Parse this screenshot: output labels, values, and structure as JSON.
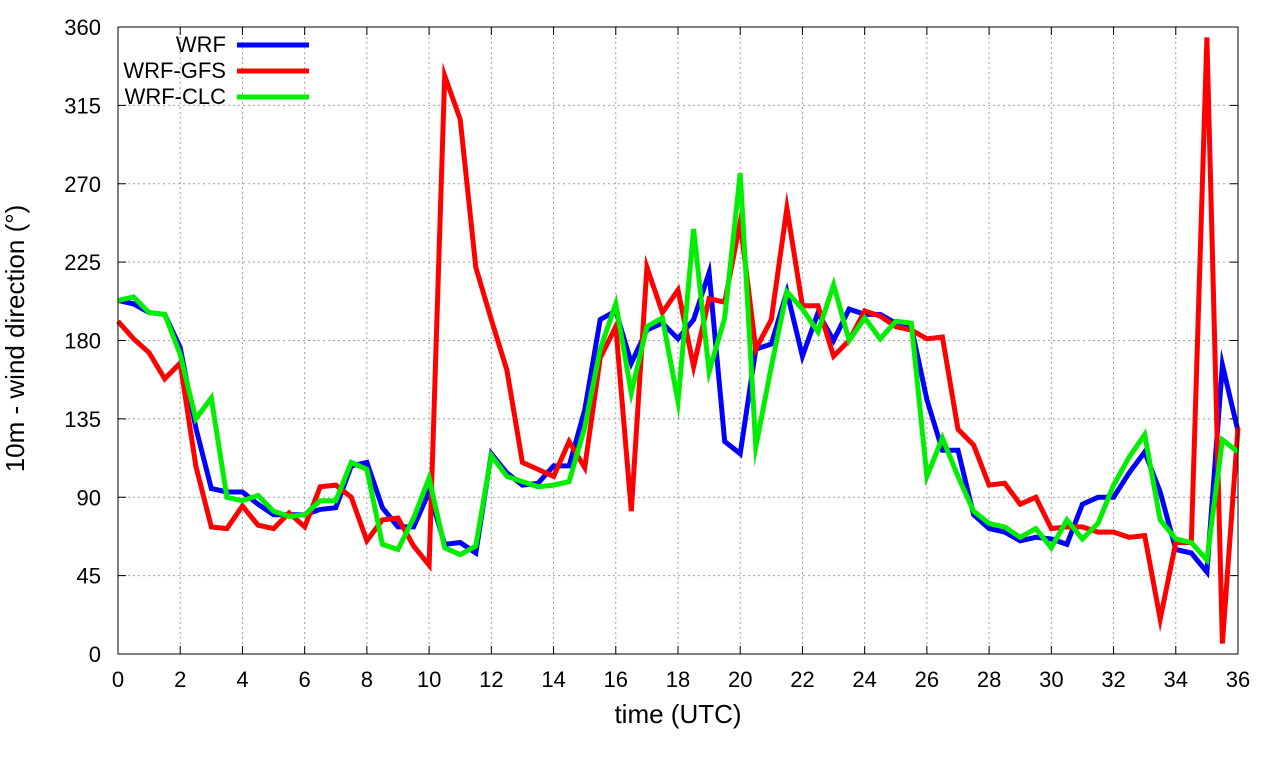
{
  "chart_data": {
    "type": "line",
    "title": "",
    "xlabel": "time (UTC)",
    "ylabel": "10m - wind direction (°)",
    "xlim": [
      0,
      36
    ],
    "ylim": [
      0,
      360
    ],
    "xticks": [
      0,
      2,
      4,
      6,
      8,
      10,
      12,
      14,
      16,
      18,
      20,
      22,
      24,
      26,
      28,
      30,
      32,
      34,
      36
    ],
    "yticks": [
      0,
      45,
      90,
      135,
      180,
      225,
      270,
      315,
      360
    ],
    "grid": true,
    "legend_position": "top-left",
    "series": [
      {
        "name": "WRF",
        "color": "#0000ff",
        "points": [
          [
            0,
            203
          ],
          [
            0.5,
            201
          ],
          [
            1,
            196
          ],
          [
            1.5,
            195
          ],
          [
            2,
            176
          ],
          [
            2.5,
            130
          ],
          [
            3,
            95
          ],
          [
            3.5,
            93
          ],
          [
            4,
            93
          ],
          [
            4.5,
            86
          ],
          [
            5,
            80
          ],
          [
            5.5,
            80
          ],
          [
            6,
            80
          ],
          [
            6.5,
            83
          ],
          [
            7,
            84
          ],
          [
            7.5,
            108
          ],
          [
            8,
            110
          ],
          [
            8.5,
            84
          ],
          [
            9,
            73
          ],
          [
            9.5,
            73
          ],
          [
            10,
            93
          ],
          [
            10.5,
            63
          ],
          [
            11,
            64
          ],
          [
            11.5,
            58
          ],
          [
            12,
            115
          ],
          [
            12.5,
            104
          ],
          [
            13,
            97
          ],
          [
            13.5,
            98
          ],
          [
            14,
            108
          ],
          [
            14.5,
            108
          ],
          [
            15,
            140
          ],
          [
            15.5,
            192
          ],
          [
            16,
            197
          ],
          [
            16.5,
            167
          ],
          [
            17,
            186
          ],
          [
            17.5,
            190
          ],
          [
            18,
            181
          ],
          [
            18.5,
            192
          ],
          [
            19,
            219
          ],
          [
            19.5,
            122
          ],
          [
            20,
            115
          ],
          [
            20.5,
            175
          ],
          [
            21,
            178
          ],
          [
            21.5,
            208
          ],
          [
            22,
            171
          ],
          [
            22.5,
            196
          ],
          [
            23,
            180
          ],
          [
            23.5,
            198
          ],
          [
            24,
            195
          ],
          [
            24.5,
            195
          ],
          [
            25,
            190
          ],
          [
            25.5,
            188
          ],
          [
            26,
            146
          ],
          [
            26.5,
            117
          ],
          [
            27,
            117
          ],
          [
            27.5,
            80
          ],
          [
            28,
            72
          ],
          [
            28.5,
            70
          ],
          [
            29,
            65
          ],
          [
            29.5,
            67
          ],
          [
            30,
            66
          ],
          [
            30.5,
            63
          ],
          [
            31,
            86
          ],
          [
            31.5,
            90
          ],
          [
            32,
            90
          ],
          [
            32.5,
            104
          ],
          [
            33,
            116
          ],
          [
            33.5,
            93
          ],
          [
            34,
            60
          ],
          [
            34.5,
            58
          ],
          [
            35,
            47
          ],
          [
            35.5,
            166
          ],
          [
            36,
            128
          ]
        ]
      },
      {
        "name": "WRF-GFS",
        "color": "#ff0000",
        "points": [
          [
            0,
            191
          ],
          [
            0.5,
            181
          ],
          [
            1,
            173
          ],
          [
            1.5,
            158
          ],
          [
            2,
            167
          ],
          [
            2.5,
            108
          ],
          [
            3,
            73
          ],
          [
            3.5,
            72
          ],
          [
            4,
            85
          ],
          [
            4.5,
            74
          ],
          [
            5,
            72
          ],
          [
            5.5,
            81
          ],
          [
            6,
            73
          ],
          [
            6.5,
            96
          ],
          [
            7,
            97
          ],
          [
            7.5,
            90
          ],
          [
            8,
            65
          ],
          [
            8.5,
            77
          ],
          [
            9,
            78
          ],
          [
            9.5,
            62
          ],
          [
            10,
            51
          ],
          [
            10.5,
            332
          ],
          [
            11,
            307
          ],
          [
            11.5,
            222
          ],
          [
            12,
            192
          ],
          [
            12.5,
            163
          ],
          [
            13,
            110
          ],
          [
            13.5,
            106
          ],
          [
            14,
            102
          ],
          [
            14.5,
            122
          ],
          [
            15,
            107
          ],
          [
            15.5,
            170
          ],
          [
            16,
            188
          ],
          [
            16.5,
            82
          ],
          [
            17,
            222
          ],
          [
            17.5,
            196
          ],
          [
            18,
            209
          ],
          [
            18.5,
            165
          ],
          [
            19,
            204
          ],
          [
            19.5,
            202
          ],
          [
            20,
            248
          ],
          [
            20.5,
            175
          ],
          [
            21,
            192
          ],
          [
            21.5,
            256
          ],
          [
            22,
            200
          ],
          [
            22.5,
            200
          ],
          [
            23,
            171
          ],
          [
            23.5,
            180
          ],
          [
            24,
            197
          ],
          [
            24.5,
            194
          ],
          [
            25,
            188
          ],
          [
            25.5,
            186
          ],
          [
            26,
            181
          ],
          [
            26.5,
            182
          ],
          [
            27,
            129
          ],
          [
            27.5,
            120
          ],
          [
            28,
            97
          ],
          [
            28.5,
            98
          ],
          [
            29,
            86
          ],
          [
            29.5,
            90
          ],
          [
            30,
            72
          ],
          [
            30.5,
            73
          ],
          [
            31,
            73
          ],
          [
            31.5,
            70
          ],
          [
            32,
            70
          ],
          [
            32.5,
            67
          ],
          [
            33,
            68
          ],
          [
            33.5,
            20
          ],
          [
            34,
            64
          ],
          [
            34.5,
            64
          ],
          [
            35,
            354
          ],
          [
            35.5,
            6
          ],
          [
            36,
            130
          ]
        ]
      },
      {
        "name": "WRF-CLC",
        "color": "#00ee00",
        "points": [
          [
            0,
            203
          ],
          [
            0.5,
            205
          ],
          [
            1,
            196
          ],
          [
            1.5,
            195
          ],
          [
            2,
            172
          ],
          [
            2.5,
            135
          ],
          [
            3,
            147
          ],
          [
            3.5,
            90
          ],
          [
            4,
            88
          ],
          [
            4.5,
            91
          ],
          [
            5,
            82
          ],
          [
            5.5,
            79
          ],
          [
            6,
            80
          ],
          [
            6.5,
            88
          ],
          [
            7,
            88
          ],
          [
            7.5,
            110
          ],
          [
            8,
            106
          ],
          [
            8.5,
            63
          ],
          [
            9,
            60
          ],
          [
            9.5,
            78
          ],
          [
            10,
            101
          ],
          [
            10.5,
            61
          ],
          [
            11,
            57
          ],
          [
            11.5,
            62
          ],
          [
            12,
            114
          ],
          [
            12.5,
            102
          ],
          [
            13,
            99
          ],
          [
            13.5,
            96
          ],
          [
            14,
            97
          ],
          [
            14.5,
            99
          ],
          [
            15,
            130
          ],
          [
            15.5,
            175
          ],
          [
            16,
            201
          ],
          [
            16.5,
            150
          ],
          [
            17,
            188
          ],
          [
            17.5,
            193
          ],
          [
            18,
            145
          ],
          [
            18.5,
            244
          ],
          [
            19,
            162
          ],
          [
            19.5,
            193
          ],
          [
            20,
            276
          ],
          [
            20.5,
            119
          ],
          [
            21,
            165
          ],
          [
            21.5,
            208
          ],
          [
            22,
            198
          ],
          [
            22.5,
            185
          ],
          [
            23,
            212
          ],
          [
            23.5,
            180
          ],
          [
            24,
            193
          ],
          [
            24.5,
            181
          ],
          [
            25,
            191
          ],
          [
            25.5,
            190
          ],
          [
            26,
            102
          ],
          [
            26.5,
            124
          ],
          [
            27,
            102
          ],
          [
            27.5,
            82
          ],
          [
            28,
            75
          ],
          [
            28.5,
            73
          ],
          [
            29,
            67
          ],
          [
            29.5,
            72
          ],
          [
            30,
            61
          ],
          [
            30.5,
            77
          ],
          [
            31,
            66
          ],
          [
            31.5,
            75
          ],
          [
            32,
            97
          ],
          [
            32.5,
            113
          ],
          [
            33,
            126
          ],
          [
            33.5,
            77
          ],
          [
            34,
            66
          ],
          [
            34.5,
            64
          ],
          [
            35,
            54
          ],
          [
            35.5,
            123
          ],
          [
            36,
            116
          ]
        ]
      }
    ]
  }
}
